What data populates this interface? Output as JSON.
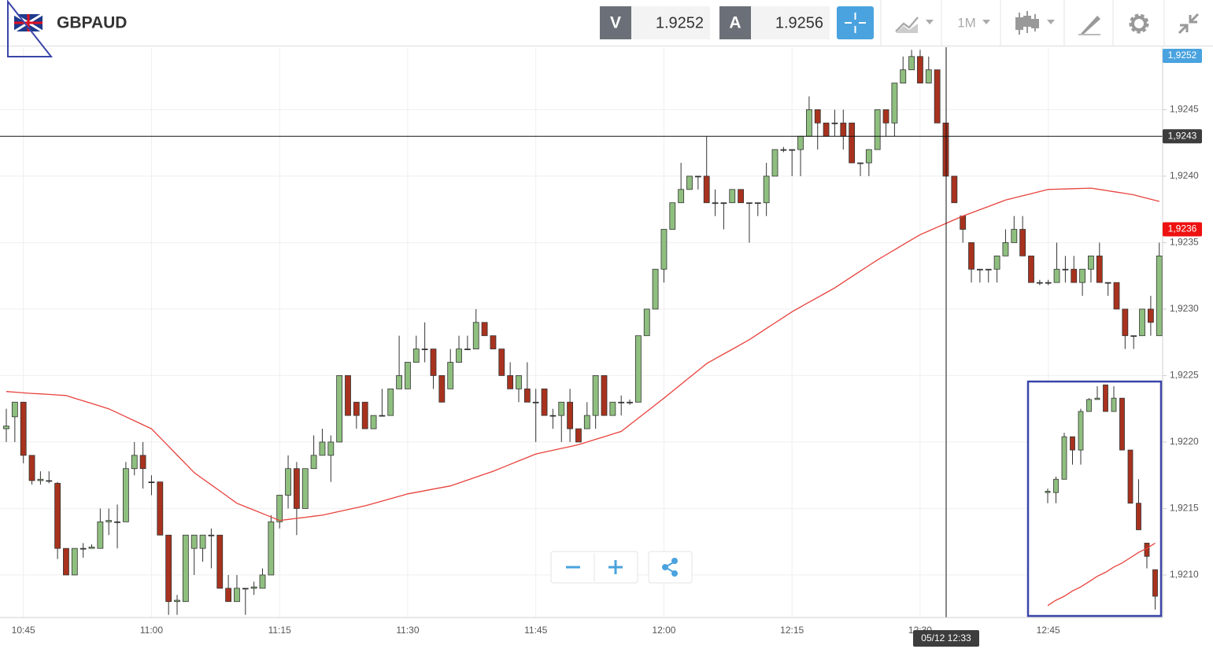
{
  "header": {
    "symbol": "GBPAUD",
    "sell": {
      "label": "V",
      "price": 1.9252
    },
    "buy": {
      "label": "A",
      "price": 1.9256
    },
    "timeframe": "1M"
  },
  "chart_data": [
    {
      "type": "candlestick",
      "categories": [
        null,
        null,
        "10:45",
        null,
        null,
        null,
        null,
        null,
        null,
        null,
        null,
        null,
        null,
        null,
        null,
        null,
        null,
        "11:00",
        null,
        null,
        null,
        null,
        null,
        null,
        null,
        null,
        null,
        null,
        null,
        null,
        null,
        null,
        "11:15",
        null,
        null,
        null,
        null,
        null,
        null,
        null,
        null,
        null,
        null,
        null,
        null,
        null,
        null,
        "11:30",
        null,
        null,
        null,
        null,
        null,
        null,
        null,
        null,
        null,
        null,
        null,
        null,
        null,
        null,
        "11:45",
        null,
        null,
        null,
        null,
        null,
        null,
        null,
        null,
        null,
        null,
        null,
        null,
        null,
        null,
        "12:00",
        null,
        null,
        null,
        null,
        null,
        null,
        null,
        null,
        null,
        null,
        null,
        null,
        null,
        null,
        "12:15",
        null,
        null,
        null,
        null,
        null,
        null,
        null,
        null,
        null,
        null,
        null,
        null,
        null,
        null,
        "12:30",
        null,
        null,
        null,
        null,
        null,
        null,
        null,
        null,
        null,
        null,
        null,
        null,
        null,
        null,
        "12:45",
        null,
        null,
        null,
        null,
        null,
        null,
        null,
        null,
        null,
        null,
        null,
        null,
        null
      ],
      "open": [
        1.9221,
        1.92219,
        1.9223,
        1.9219,
        1.92171,
        1.92171,
        1.92169,
        1.9212,
        1.921,
        1.9212,
        1.9212,
        1.9212,
        1.9214,
        1.9214,
        1.9214,
        1.9218,
        1.9219,
        1.9217,
        1.9217,
        1.9213,
        1.9208,
        1.9208,
        1.9212,
        1.9212,
        1.9213,
        1.9213,
        1.9209,
        1.9208,
        1.9209,
        1.9209,
        1.9209,
        1.921,
        1.9214,
        1.9216,
        1.9218,
        1.9215,
        1.9218,
        1.9219,
        1.9219,
        1.922,
        1.9225,
        1.9223,
        1.9223,
        1.9221,
        1.9222,
        1.9222,
        1.9224,
        1.9224,
        1.9226,
        1.9227,
        1.9227,
        1.9225,
        1.9224,
        1.9226,
        1.9227,
        1.9227,
        1.9229,
        1.9228,
        1.9227,
        1.9225,
        1.9224,
        1.9224,
        1.9223,
        1.9224,
        1.9222,
        1.9222,
        1.9223,
        1.9221,
        1.9221,
        1.9222,
        1.9225,
        1.9222,
        1.9223,
        1.9223,
        1.9223,
        1.9228,
        1.923,
        1.9233,
        1.9236,
        1.9238,
        1.9239,
        1.924,
        1.924,
        1.9238,
        1.9238,
        1.9238,
        1.9239,
        1.9238,
        1.9238,
        1.9238,
        1.924,
        1.9242,
        1.9242,
        1.9242,
        1.9243,
        1.9245,
        1.9244,
        1.9244,
        1.9244,
        1.9244,
        1.9241,
        1.9241,
        1.9242,
        1.9245,
        1.9244,
        1.9247,
        1.9248,
        1.9249,
        1.9247,
        1.9248,
        1.9244,
        1.924,
        1.9237,
        1.9235,
        1.9233,
        1.9233,
        1.9233,
        1.9234,
        1.9235,
        1.9236,
        1.9234,
        1.9232,
        1.9232,
        1.9232,
        1.9233,
        1.9233,
        1.9232,
        1.9233,
        1.9234,
        1.9232,
        1.9232,
        1.923,
        1.9228,
        1.9228,
        1.923,
        1.9228
      ],
      "high": [
        1.92225,
        1.9223,
        1.9223,
        1.9219,
        1.92178,
        1.92178,
        1.9217,
        1.9212,
        1.9212,
        1.92124,
        1.92123,
        1.9215,
        1.9215,
        1.92153,
        1.92185,
        1.922,
        1.922,
        1.92175,
        1.9217,
        1.9213,
        1.92085,
        1.9213,
        1.9213,
        1.9213,
        1.92135,
        1.9213,
        1.921,
        1.921,
        1.9209,
        1.92095,
        1.92105,
        1.92145,
        1.9216,
        1.9219,
        1.92185,
        1.9218,
        1.92205,
        1.9221,
        1.92205,
        1.9225,
        1.9225,
        1.9223,
        1.9223,
        1.9222,
        1.9224,
        1.9224,
        1.9228,
        1.9226,
        1.9228,
        1.9229,
        1.9227,
        1.9225,
        1.9227,
        1.9228,
        1.9228,
        1.923,
        1.9229,
        1.9228,
        1.9227,
        1.9226,
        1.9225,
        1.9226,
        1.9224,
        1.9224,
        1.92225,
        1.9223,
        1.9224,
        1.9221,
        1.9223,
        1.9225,
        1.9225,
        1.9223,
        1.92235,
        1.92232,
        1.9228,
        1.923,
        1.9233,
        1.9236,
        1.9238,
        1.9241,
        1.924,
        1.924,
        1.9243,
        1.9239,
        1.9238,
        1.9239,
        1.9239,
        1.9238,
        1.9238,
        1.9241,
        1.9242,
        1.92422,
        1.9242,
        1.9243,
        1.9246,
        1.9245,
        1.9244,
        1.9245,
        1.9245,
        1.9244,
        1.9241,
        1.9242,
        1.9245,
        1.9245,
        1.9247,
        1.9249,
        1.92495,
        1.92495,
        1.9249,
        1.9248,
        1.9244,
        1.924,
        1.9237,
        1.9235,
        1.9233,
        1.9233,
        1.9234,
        1.9236,
        1.9237,
        1.9237,
        1.9234,
        1.92322,
        1.92322,
        1.9235,
        1.9234,
        1.9234,
        1.9233,
        1.9234,
        1.9235,
        1.9232,
        1.9232,
        1.923,
        1.9228,
        1.923,
        1.9231,
        1.9235
      ],
      "low": [
        1.922,
        1.922,
        1.92184,
        1.92168,
        1.92168,
        1.92169,
        1.92112,
        1.921,
        1.921,
        1.92113,
        1.9212,
        1.9212,
        1.9213,
        1.9212,
        1.9214,
        1.92175,
        1.92165,
        1.9216,
        1.9213,
        1.9207,
        1.9207,
        1.9208,
        1.921,
        1.9211,
        1.92105,
        1.9209,
        1.9208,
        1.9208,
        1.9207,
        1.92085,
        1.9209,
        1.921,
        1.92135,
        1.9215,
        1.9213,
        1.9215,
        1.9218,
        1.9219,
        1.9217,
        1.922,
        1.9222,
        1.9221,
        1.9221,
        1.9221,
        1.9222,
        1.9222,
        1.9224,
        1.9224,
        1.9226,
        1.9226,
        1.9224,
        1.9223,
        1.9224,
        1.9226,
        1.9227,
        1.9227,
        1.9228,
        1.9227,
        1.9225,
        1.9224,
        1.9223,
        1.9223,
        1.922,
        1.9222,
        1.9221,
        1.922,
        1.922,
        1.922,
        1.9221,
        1.9221,
        1.9222,
        1.9222,
        1.9222,
        1.92228,
        1.9223,
        1.9228,
        1.923,
        1.9232,
        1.9236,
        1.9238,
        1.9239,
        1.9239,
        1.9238,
        1.9237,
        1.9236,
        1.9238,
        1.9238,
        1.9235,
        1.9237,
        1.9237,
        1.924,
        1.92418,
        1.924,
        1.924,
        1.9243,
        1.9242,
        1.9243,
        1.9243,
        1.9242,
        1.9241,
        1.924,
        1.924,
        1.9242,
        1.9243,
        1.9243,
        1.9247,
        1.9248,
        1.9247,
        1.9247,
        1.9244,
        1.924,
        1.9238,
        1.9235,
        1.9232,
        1.9232,
        1.9232,
        1.9232,
        1.9234,
        1.9235,
        1.9234,
        1.9232,
        1.92318,
        1.92318,
        1.9232,
        1.9232,
        1.9232,
        1.9231,
        1.9232,
        1.9232,
        1.9231,
        1.923,
        1.9227,
        1.9227,
        1.9228,
        1.9228,
        1.9228
      ],
      "close": [
        1.92212,
        1.9223,
        1.9219,
        1.92171,
        1.92172,
        1.92171,
        1.9212,
        1.921,
        1.9212,
        1.9212,
        1.92121,
        1.9214,
        1.92141,
        1.9214,
        1.9218,
        1.9219,
        1.9218,
        1.9217,
        1.9213,
        1.9208,
        1.92081,
        1.9213,
        1.9213,
        1.9213,
        1.9213,
        1.9209,
        1.9208,
        1.9209,
        1.9209,
        1.92091,
        1.921,
        1.9214,
        1.9216,
        1.9218,
        1.9215,
        1.9218,
        1.9219,
        1.922,
        1.922,
        1.9225,
        1.9222,
        1.9222,
        1.9221,
        1.9222,
        1.9222,
        1.9224,
        1.9225,
        1.9226,
        1.9227,
        1.9227,
        1.9225,
        1.9223,
        1.9226,
        1.9227,
        1.9227,
        1.9229,
        1.9228,
        1.9227,
        1.9225,
        1.9224,
        1.9225,
        1.9223,
        1.9223,
        1.9222,
        1.9222,
        1.9223,
        1.9221,
        1.922,
        1.9222,
        1.9225,
        1.9222,
        1.9223,
        1.9223,
        1.9223,
        1.9228,
        1.923,
        1.9233,
        1.9236,
        1.9238,
        1.9239,
        1.924,
        1.924,
        1.9238,
        1.9238,
        1.9238,
        1.9239,
        1.9238,
        1.9238,
        1.9238,
        1.924,
        1.9242,
        1.9242,
        1.9242,
        1.9243,
        1.9245,
        1.9244,
        1.9243,
        1.9244,
        1.9243,
        1.9241,
        1.9241,
        1.9242,
        1.9245,
        1.9244,
        1.9247,
        1.9248,
        1.9249,
        1.9247,
        1.9248,
        1.9244,
        1.924,
        1.9238,
        1.9236,
        1.9233,
        1.9233,
        1.9233,
        1.9234,
        1.9235,
        1.9236,
        1.9234,
        1.9232,
        1.9232,
        1.9232,
        1.9233,
        1.9233,
        1.9232,
        1.9233,
        1.9234,
        1.9232,
        1.9232,
        1.923,
        1.9228,
        1.9228,
        1.923,
        1.9229,
        1.9234
      ],
      "up_color": "#8fbf7f",
      "down_color": "#a8321e",
      "doji_color": "#333333",
      "overlay": {
        "color": "#e8423c",
        "values": [
          1.92238,
          1.922375,
          1.92237,
          1.922366,
          1.922362,
          1.922358,
          1.922354,
          1.92235,
          1.92233,
          1.92231,
          1.92229,
          1.92227,
          1.92225,
          1.92222,
          1.92219,
          1.92216,
          1.92213,
          1.9221,
          1.922034,
          1.921968,
          1.921902,
          1.921836,
          1.92177,
          1.921724,
          1.921678,
          1.921632,
          1.921586,
          1.92154,
          1.921514,
          1.921488,
          1.921462,
          1.921436,
          1.92141,
          1.921418,
          1.921426,
          1.921434,
          1.921442,
          1.92145,
          1.921464,
          1.921478,
          1.921492,
          1.921506,
          1.92152,
          1.921538,
          1.921556,
          1.921574,
          1.921592,
          1.92161,
          1.921622,
          1.921634,
          1.921646,
          1.921658,
          1.92167,
          1.921692,
          1.921714,
          1.921736,
          1.921758,
          1.92178,
          1.921806,
          1.921832,
          1.921858,
          1.921884,
          1.92191,
          1.921924,
          1.921938,
          1.921952,
          1.921966,
          1.92198,
          1.922,
          1.92202,
          1.92204,
          1.92206,
          1.92208,
          1.92213,
          1.92218,
          1.92223,
          1.92228,
          1.92233,
          1.922382,
          1.922434,
          1.922486,
          1.922538,
          1.92259,
          1.922626,
          1.922662,
          1.922698,
          1.922734,
          1.92277,
          1.922812,
          1.922854,
          1.922896,
          1.922938,
          1.92298,
          1.923016,
          1.923052,
          1.923088,
          1.923124,
          1.92316,
          1.923202,
          1.923244,
          1.923286,
          1.923328,
          1.92337,
          1.923408,
          1.923446,
          1.923484,
          1.923522,
          1.92356,
          1.923588,
          1.923616,
          1.923644,
          1.923672,
          1.9237,
          1.923724,
          1.923748,
          1.923772,
          1.923796,
          1.92382,
          1.923836,
          1.923852,
          1.923868,
          1.923884,
          1.9239,
          1.923902,
          1.923904,
          1.923906,
          1.923908,
          1.92391,
          1.9239,
          1.92389,
          1.92388,
          1.92387,
          1.92386,
          1.923843,
          1.923827,
          1.92381
        ]
      },
      "ylim": [
        1.92068,
        1.92497
      ],
      "yticks": [
        {
          "value": 1.921,
          "label": "1,9210"
        },
        {
          "value": 1.9215,
          "label": "1,9215"
        },
        {
          "value": 1.922,
          "label": "1,9220"
        },
        {
          "value": 1.9225,
          "label": "1,9225"
        },
        {
          "value": 1.923,
          "label": "1,9230"
        },
        {
          "value": 1.9235,
          "label": "1,9235"
        },
        {
          "value": 1.924,
          "label": "1,9240"
        },
        {
          "value": 1.9245,
          "label": "1,9245"
        }
      ],
      "grid": true,
      "last_price": {
        "value": 1.9252,
        "label": "1,9252",
        "color": "#4aa3df"
      },
      "ma_price": {
        "value": 1.9236,
        "label": "1,9236",
        "color": "#ee1111"
      },
      "crosshair": {
        "price": {
          "value": 1.9243,
          "label": "1,9243"
        },
        "time": "05/12 12:33"
      }
    },
    {
      "type": "candlestick",
      "open": [
        1.92162,
        1.92162,
        1.92172,
        1.92204,
        1.92194,
        1.92223,
        1.92232,
        1.92243,
        1.92223,
        1.92233,
        1.92194,
        1.92154,
        1.92124,
        1.92104
      ],
      "high": [
        1.92165,
        1.92174,
        1.92207,
        1.92204,
        1.92225,
        1.92233,
        1.92242,
        1.92243,
        1.92242,
        1.92233,
        1.92194,
        1.92172,
        1.92124,
        1.92104
      ],
      "low": [
        1.92154,
        1.92154,
        1.92172,
        1.92183,
        1.92183,
        1.92223,
        1.92232,
        1.92223,
        1.92223,
        1.92194,
        1.92154,
        1.92134,
        1.92105,
        1.92074
      ],
      "close": [
        1.92163,
        1.92172,
        1.92204,
        1.92194,
        1.92223,
        1.92232,
        1.92233,
        1.92223,
        1.92233,
        1.92194,
        1.92154,
        1.92134,
        1.92114,
        1.92084
      ],
      "up_color": "#8fbf7f",
      "down_color": "#a8321e",
      "doji_color": "#333333",
      "frame_color": "#3a45a8",
      "overlay": {
        "color": "#e8423c",
        "values": [
          1.92077,
          1.92081,
          1.92084,
          1.92088,
          1.92091,
          1.92095,
          1.92099,
          1.92102,
          1.92106,
          1.92109,
          1.92113,
          1.92117,
          1.9212,
          1.92124
        ]
      }
    }
  ]
}
